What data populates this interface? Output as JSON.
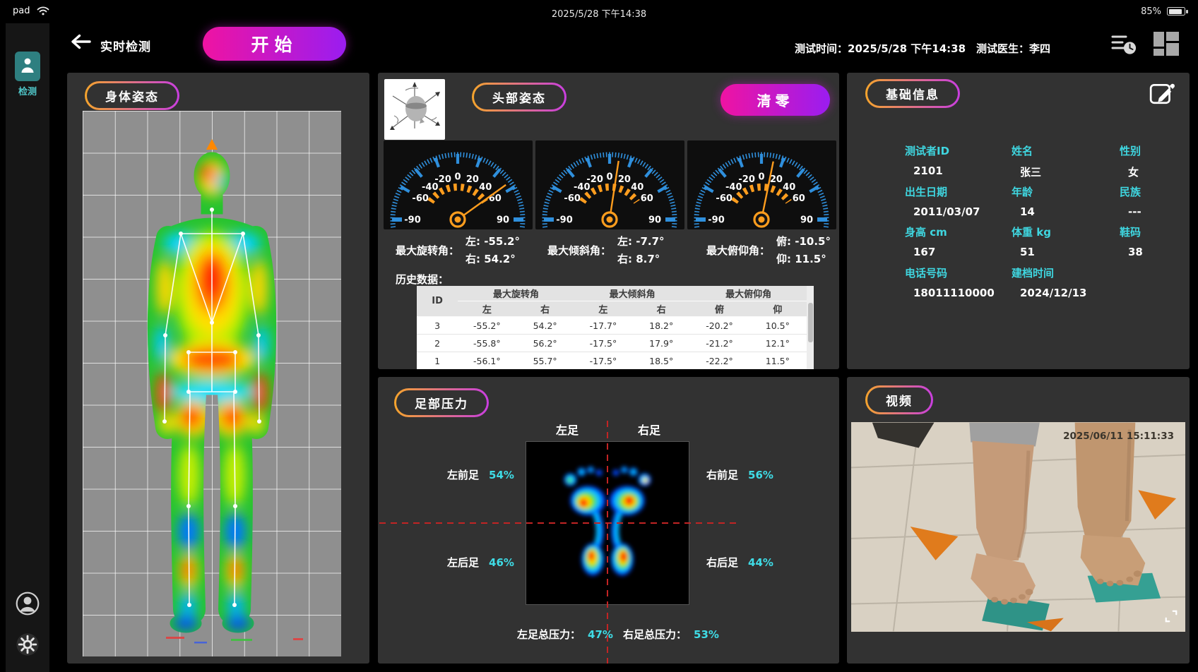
{
  "status_bar": {
    "device": "pad",
    "time": "2025/5/28 下午14:38",
    "battery": "85%"
  },
  "sidebar": {
    "detect_label": "检测"
  },
  "header": {
    "title": "实时检测",
    "start_button": "开始",
    "test_time_label": "测试时间：",
    "test_time": "2025/5/28  下午14:38",
    "doctor_label": "测试医生：",
    "doctor_name": "李四"
  },
  "body_posture": {
    "title": "身体姿态"
  },
  "head_posture": {
    "title": "头部姿态",
    "reset_button": "清零",
    "gauge_ticks": [
      -90,
      -60,
      -40,
      -20,
      0,
      20,
      40,
      60,
      90
    ],
    "gauges": [
      {
        "value": 54.2
      },
      {
        "value": 8.7
      },
      {
        "value": 11.5
      }
    ],
    "metrics": [
      {
        "label": "最大旋转角：",
        "line1": "左:  -55.2°",
        "line2": "右:  54.2°"
      },
      {
        "label": "最大倾斜角：",
        "line1": "左:  -7.7°",
        "line2": "右:  8.7°"
      },
      {
        "label": "最大俯仰角：",
        "line1": "俯:  -10.5°",
        "line2": "仰:  11.5°"
      }
    ],
    "history_label": "历史数据：",
    "table": {
      "id_header": "ID",
      "group_headers": [
        "最大旋转角",
        "最大倾斜角",
        "最大俯仰角"
      ],
      "sub_headers": [
        "左",
        "右",
        "左",
        "右",
        "俯",
        "仰"
      ],
      "rows": [
        [
          "3",
          "-55.2°",
          "54.2°",
          "-17.7°",
          "18.2°",
          "-20.2°",
          "10.5°"
        ],
        [
          "2",
          "-55.8°",
          "56.2°",
          "-17.5°",
          "17.9°",
          "-21.2°",
          "12.1°"
        ],
        [
          "1",
          "-56.1°",
          "55.7°",
          "-17.5°",
          "18.5°",
          "-22.2°",
          "11.5°"
        ]
      ]
    }
  },
  "foot_pressure": {
    "title": "足部压力",
    "left_foot": "左足",
    "right_foot": "右足",
    "left_fore_label": "左前足",
    "left_fore_value": "54%",
    "right_fore_label": "右前足",
    "right_fore_value": "56%",
    "left_rear_label": "左后足",
    "left_rear_value": "46%",
    "right_rear_label": "右后足",
    "right_rear_value": "44%",
    "left_total_label": "左足总压力：",
    "left_total_value": "47%",
    "right_total_label": "右足总压力：",
    "right_total_value": "53%"
  },
  "basic_info": {
    "title": "基础信息",
    "fields": [
      {
        "label": "测试者ID",
        "value": "2101"
      },
      {
        "label": "姓名",
        "value": "张三"
      },
      {
        "label": "性别",
        "value": "女"
      },
      {
        "label": "出生日期",
        "value": "2011/03/07"
      },
      {
        "label": "年龄",
        "value": "14"
      },
      {
        "label": "民族",
        "value": "---"
      },
      {
        "label": "身高 cm",
        "value": "167"
      },
      {
        "label": "体重 kg",
        "value": "51"
      },
      {
        "label": "鞋码",
        "value": "38"
      },
      {
        "label": "电话号码",
        "value": "18011110000"
      },
      {
        "label": "建档时间",
        "value": "2024/12/13"
      }
    ]
  },
  "video": {
    "title": "视频",
    "timestamp": "2025/06/11 15:11:33"
  },
  "colors": {
    "accent_cyan": "#3fdce6",
    "gradient_start": "#ef13a2",
    "gradient_end": "#9a1df0",
    "pill_orange": "#f5a42c",
    "pill_purple": "#c93ee0",
    "gauge_blue": "#2f8fdc",
    "gauge_orange": "#ff9d1e",
    "crosshair_red": "#c22424"
  }
}
